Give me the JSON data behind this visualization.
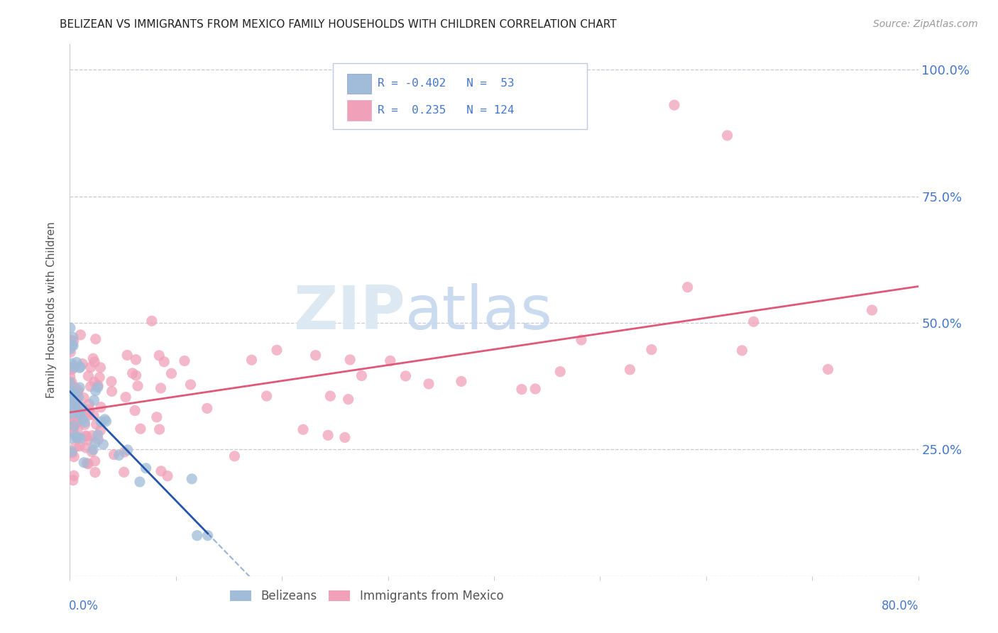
{
  "title": "BELIZEAN VS IMMIGRANTS FROM MEXICO FAMILY HOUSEHOLDS WITH CHILDREN CORRELATION CHART",
  "source": "Source: ZipAtlas.com",
  "ylabel": "Family Households with Children",
  "belize_color": "#a0bcd8",
  "mexico_color": "#f0a0b8",
  "belize_line_color": "#2255aa",
  "mexico_line_color": "#e05878",
  "axis_label_color": "#4477cc",
  "background_color": "#ffffff",
  "grid_color": "#c8c8d8",
  "xlim": [
    0.0,
    0.8
  ],
  "ylim": [
    0.0,
    1.05
  ],
  "yticks": [
    0.0,
    0.25,
    0.5,
    0.75,
    1.0
  ],
  "ytick_labels": [
    "",
    "25.0%",
    "50.0%",
    "75.0%",
    "100.0%"
  ]
}
